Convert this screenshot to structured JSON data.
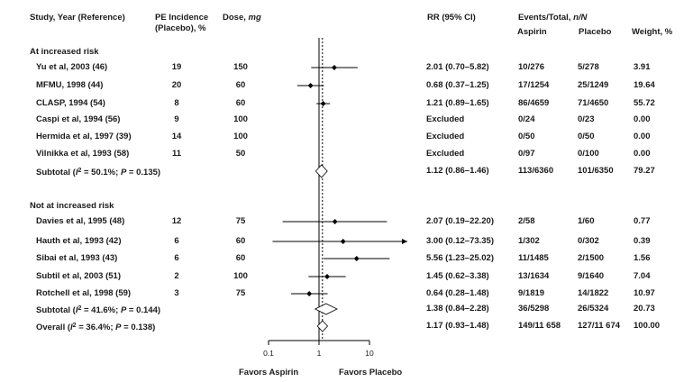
{
  "header": {
    "study": "Study, Year (Reference)",
    "pe_line1": "PE Incidence",
    "pe_line2": "(Placebo), %",
    "dose_prefix": "Dose, ",
    "dose_unit": "mg",
    "rr": "RR (95% CI)",
    "events_prefix": "Events/Total, ",
    "events_unit": "n/N",
    "aspirin": "Aspirin",
    "placebo": "Placebo",
    "weight": "Weight, %"
  },
  "chart_data": {
    "type": "forest",
    "x_scale": "log",
    "xlim": [
      0.1,
      10
    ],
    "x_ticks": [
      "0.1",
      "1",
      "10"
    ],
    "null_line": 1,
    "left_label": "Favors Aspirin",
    "right_label": "Favors Placebo",
    "groups": [
      {
        "title": "At increased risk",
        "studies": [
          {
            "name": "Yu et al, 2003 (46)",
            "pe": "19",
            "dose": "150",
            "rr": 2.01,
            "lo": 0.7,
            "hi": 5.82,
            "rr_text": "2.01 (0.70–5.82)",
            "aspirin": "10/276",
            "placebo": "5/278",
            "weight": "3.91"
          },
          {
            "name": "MFMU, 1998 (44)",
            "pe": "20",
            "dose": "60",
            "rr": 0.68,
            "lo": 0.37,
            "hi": 1.25,
            "rr_text": "0.68 (0.37–1.25)",
            "aspirin": "17/1254",
            "placebo": "25/1249",
            "weight": "19.64"
          },
          {
            "name": "CLASP, 1994 (54)",
            "pe": "8",
            "dose": "60",
            "rr": 1.21,
            "lo": 0.89,
            "hi": 1.65,
            "rr_text": "1.21 (0.89–1.65)",
            "aspirin": "86/4659",
            "placebo": "71/4650",
            "weight": "55.72"
          },
          {
            "name": "Caspi et al, 1994 (56)",
            "pe": "9",
            "dose": "100",
            "rr": null,
            "lo": null,
            "hi": null,
            "rr_text": "Excluded",
            "aspirin": "0/24",
            "placebo": "0/23",
            "weight": "0.00"
          },
          {
            "name": "Hermida et al, 1997 (39)",
            "pe": "14",
            "dose": "100",
            "rr": null,
            "lo": null,
            "hi": null,
            "rr_text": "Excluded",
            "aspirin": "0/50",
            "placebo": "0/50",
            "weight": "0.00"
          },
          {
            "name": "Vilnikka et al, 1993 (58)",
            "pe": "11",
            "dose": "50",
            "rr": null,
            "lo": null,
            "hi": null,
            "rr_text": "Excluded",
            "aspirin": "0/97",
            "placebo": "0/100",
            "weight": "0.00"
          }
        ],
        "subtotal": {
          "label_prefix": "Subtotal (",
          "label_i2": "I",
          "label_rest": "2 = 50.1%; ",
          "label_p": "P",
          "label_end": " = 0.135)",
          "rr": 1.12,
          "lo": 0.86,
          "hi": 1.46,
          "rr_text": "1.12 (0.86–1.46)",
          "aspirin": "113/6360",
          "placebo": "101/6350",
          "weight": "79.27"
        }
      },
      {
        "title": "Not at increased risk",
        "studies": [
          {
            "name": "Davies et al, 1995 (48)",
            "pe": "12",
            "dose": "75",
            "rr": 2.07,
            "lo": 0.19,
            "hi": 22.2,
            "rr_text": "2.07 (0.19–22.20)",
            "aspirin": "2/58",
            "placebo": "1/60",
            "weight": "0.77"
          },
          {
            "name": "Hauth et al, 1993 (42)",
            "pe": "6",
            "dose": "60",
            "rr": 3.0,
            "lo": 0.12,
            "hi": 73.35,
            "rr_text": "3.00 (0.12–73.35)",
            "aspirin": "1/302",
            "placebo": "0/302",
            "weight": "0.39"
          },
          {
            "name": "Sibai et al, 1993 (43)",
            "pe": "6",
            "dose": "60",
            "rr": 5.56,
            "lo": 1.23,
            "hi": 25.02,
            "rr_text": "5.56 (1.23–25.02)",
            "aspirin": "11/1485",
            "placebo": "2/1500",
            "weight": "1.56"
          },
          {
            "name": "Subtil et al, 2003 (51)",
            "pe": "2",
            "dose": "100",
            "rr": 1.45,
            "lo": 0.62,
            "hi": 3.38,
            "rr_text": "1.45 (0.62–3.38)",
            "aspirin": "13/1634",
            "placebo": "9/1640",
            "weight": "7.04"
          },
          {
            "name": "Rotchell et al, 1998 (59)",
            "pe": "3",
            "dose": "75",
            "rr": 0.64,
            "lo": 0.28,
            "hi": 1.48,
            "rr_text": "0.64 (0.28–1.48)",
            "aspirin": "9/1819",
            "placebo": "14/1822",
            "weight": "10.97"
          }
        ],
        "subtotal": {
          "label_prefix": "Subtotal (",
          "label_i2": "I",
          "label_rest": "2 = 41.6%; ",
          "label_p": "P",
          "label_end": " = 0.144)",
          "rr": 1.38,
          "lo": 0.84,
          "hi": 2.28,
          "rr_text": "1.38 (0.84–2.28)",
          "aspirin": "36/5298",
          "placebo": "26/5324",
          "weight": "20.73"
        }
      }
    ],
    "overall": {
      "label_prefix": "Overall (",
      "label_i2": "I",
      "label_rest": "2 = 36.4%; ",
      "label_p": "P",
      "label_end": " = 0.138)",
      "rr": 1.17,
      "lo": 0.93,
      "hi": 1.48,
      "rr_text": "1.17 (0.93–1.48)",
      "aspirin": "149/11 658",
      "placebo": "127/11 674",
      "weight": "100.00"
    }
  }
}
